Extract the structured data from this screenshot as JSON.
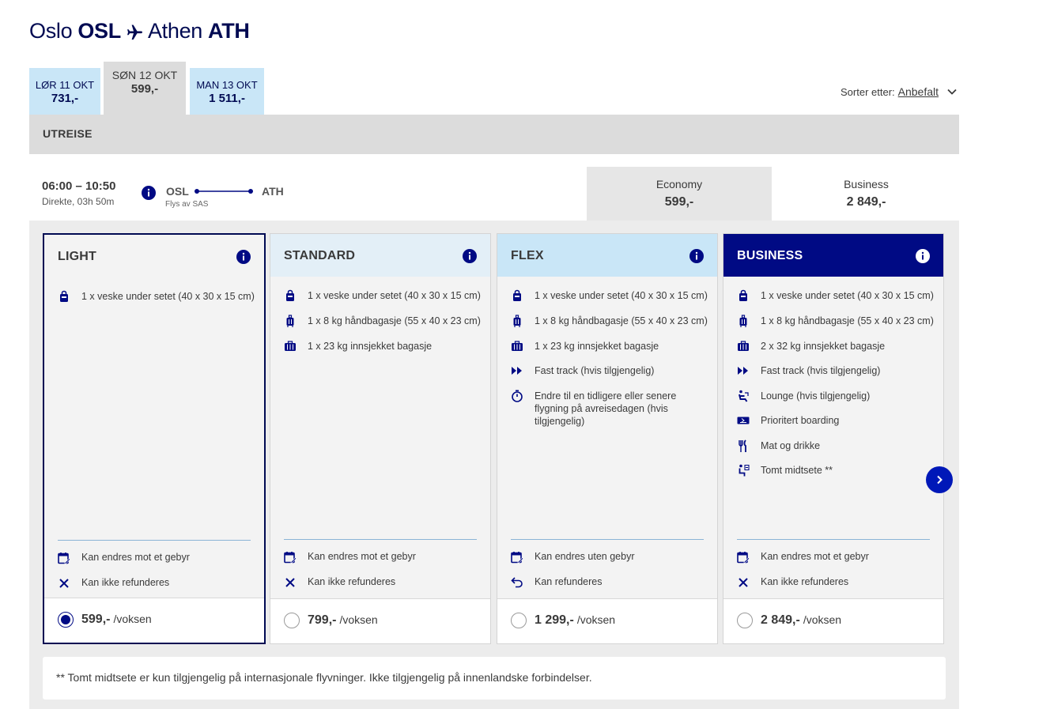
{
  "header": {
    "from_city": "Oslo",
    "from_code": "OSL",
    "to_city": "Athen",
    "to_code": "ATH"
  },
  "date_tabs": [
    {
      "date": "LØR 11 OKT",
      "price": "731,-"
    },
    {
      "date": "SØN 12 OKT",
      "price": "599,-"
    },
    {
      "date": "MAN 13 OKT",
      "price": "1 511,-"
    }
  ],
  "sort": {
    "label": "Sorter etter:",
    "value": "Anbefalt"
  },
  "section_label": "UTREISE",
  "flight": {
    "time": "06:00 – 10:50",
    "duration": "Direkte, 03h 50m",
    "from": "OSL",
    "to": "ATH",
    "operator": "Flys av SAS"
  },
  "cabins": [
    {
      "name": "Economy",
      "price": "599,-"
    },
    {
      "name": "Business",
      "price": "2 849,-"
    }
  ],
  "fares": [
    {
      "name": "LIGHT",
      "features": [
        {
          "icon": "bag-icon",
          "text": "1 x veske under setet (40 x 30 x 15 cm)"
        }
      ],
      "conditions": [
        {
          "icon": "calendar-edit-icon",
          "text": "Kan endres mot et gebyr"
        },
        {
          "icon": "x-icon",
          "text": "Kan ikke refunderes"
        }
      ],
      "price": "599,-",
      "unit": "/voksen"
    },
    {
      "name": "STANDARD",
      "features": [
        {
          "icon": "bag-icon",
          "text": "1 x veske under setet (40 x 30 x 15 cm)"
        },
        {
          "icon": "trolley-icon",
          "text": "1 x 8 kg håndbagasje (55 x 40 x 23 cm)"
        },
        {
          "icon": "suitcase-icon",
          "text": "1 x 23 kg innsjekket bagasje"
        }
      ],
      "conditions": [
        {
          "icon": "calendar-edit-icon",
          "text": "Kan endres mot et gebyr"
        },
        {
          "icon": "x-icon",
          "text": "Kan ikke refunderes"
        }
      ],
      "price": "799,-",
      "unit": "/voksen"
    },
    {
      "name": "FLEX",
      "features": [
        {
          "icon": "bag-icon",
          "text": "1 x veske under setet (40 x 30 x 15 cm)"
        },
        {
          "icon": "trolley-icon",
          "text": "1 x 8 kg håndbagasje (55 x 40 x 23 cm)"
        },
        {
          "icon": "suitcase-icon",
          "text": "1 x 23 kg innsjekket bagasje"
        },
        {
          "icon": "fast-track-icon",
          "text": "Fast track (hvis tilgjengelig)"
        },
        {
          "icon": "stopwatch-icon",
          "text": "Endre til en tidligere eller senere flygning på avreisedagen (hvis tilgjengelig)"
        }
      ],
      "conditions": [
        {
          "icon": "calendar-edit-icon",
          "text": "Kan endres uten gebyr"
        },
        {
          "icon": "refund-icon",
          "text": "Kan refunderes"
        }
      ],
      "price": "1 299,-",
      "unit": "/voksen"
    },
    {
      "name": "BUSINESS",
      "features": [
        {
          "icon": "bag-icon",
          "text": "1 x veske under setet (40 x 30 x 15 cm)"
        },
        {
          "icon": "trolley-icon",
          "text": "1 x 8 kg håndbagasje (55 x 40 x 23 cm)"
        },
        {
          "icon": "suitcase-icon",
          "text": "2 x 32 kg innsjekket bagasje"
        },
        {
          "icon": "fast-track-icon",
          "text": "Fast track (hvis tilgjengelig)"
        },
        {
          "icon": "lounge-icon",
          "text": "Lounge (hvis tilgjengelig)"
        },
        {
          "icon": "boarding-pass-icon",
          "text": "Prioritert boarding"
        },
        {
          "icon": "cutlery-icon",
          "text": "Mat og drikke"
        },
        {
          "icon": "empty-seat-icon",
          "text": "Tomt midtsete **"
        }
      ],
      "conditions": [
        {
          "icon": "calendar-edit-icon",
          "text": "Kan endres mot et gebyr"
        },
        {
          "icon": "x-icon",
          "text": "Kan ikke refunderes"
        }
      ],
      "price": "2 849,-",
      "unit": "/voksen"
    }
  ],
  "footnote": "** Tomt midtsete er kun tilgjengelig på internasjonale flyvninger. Ikke tilgjengelig på innenlandske forbindelser."
}
